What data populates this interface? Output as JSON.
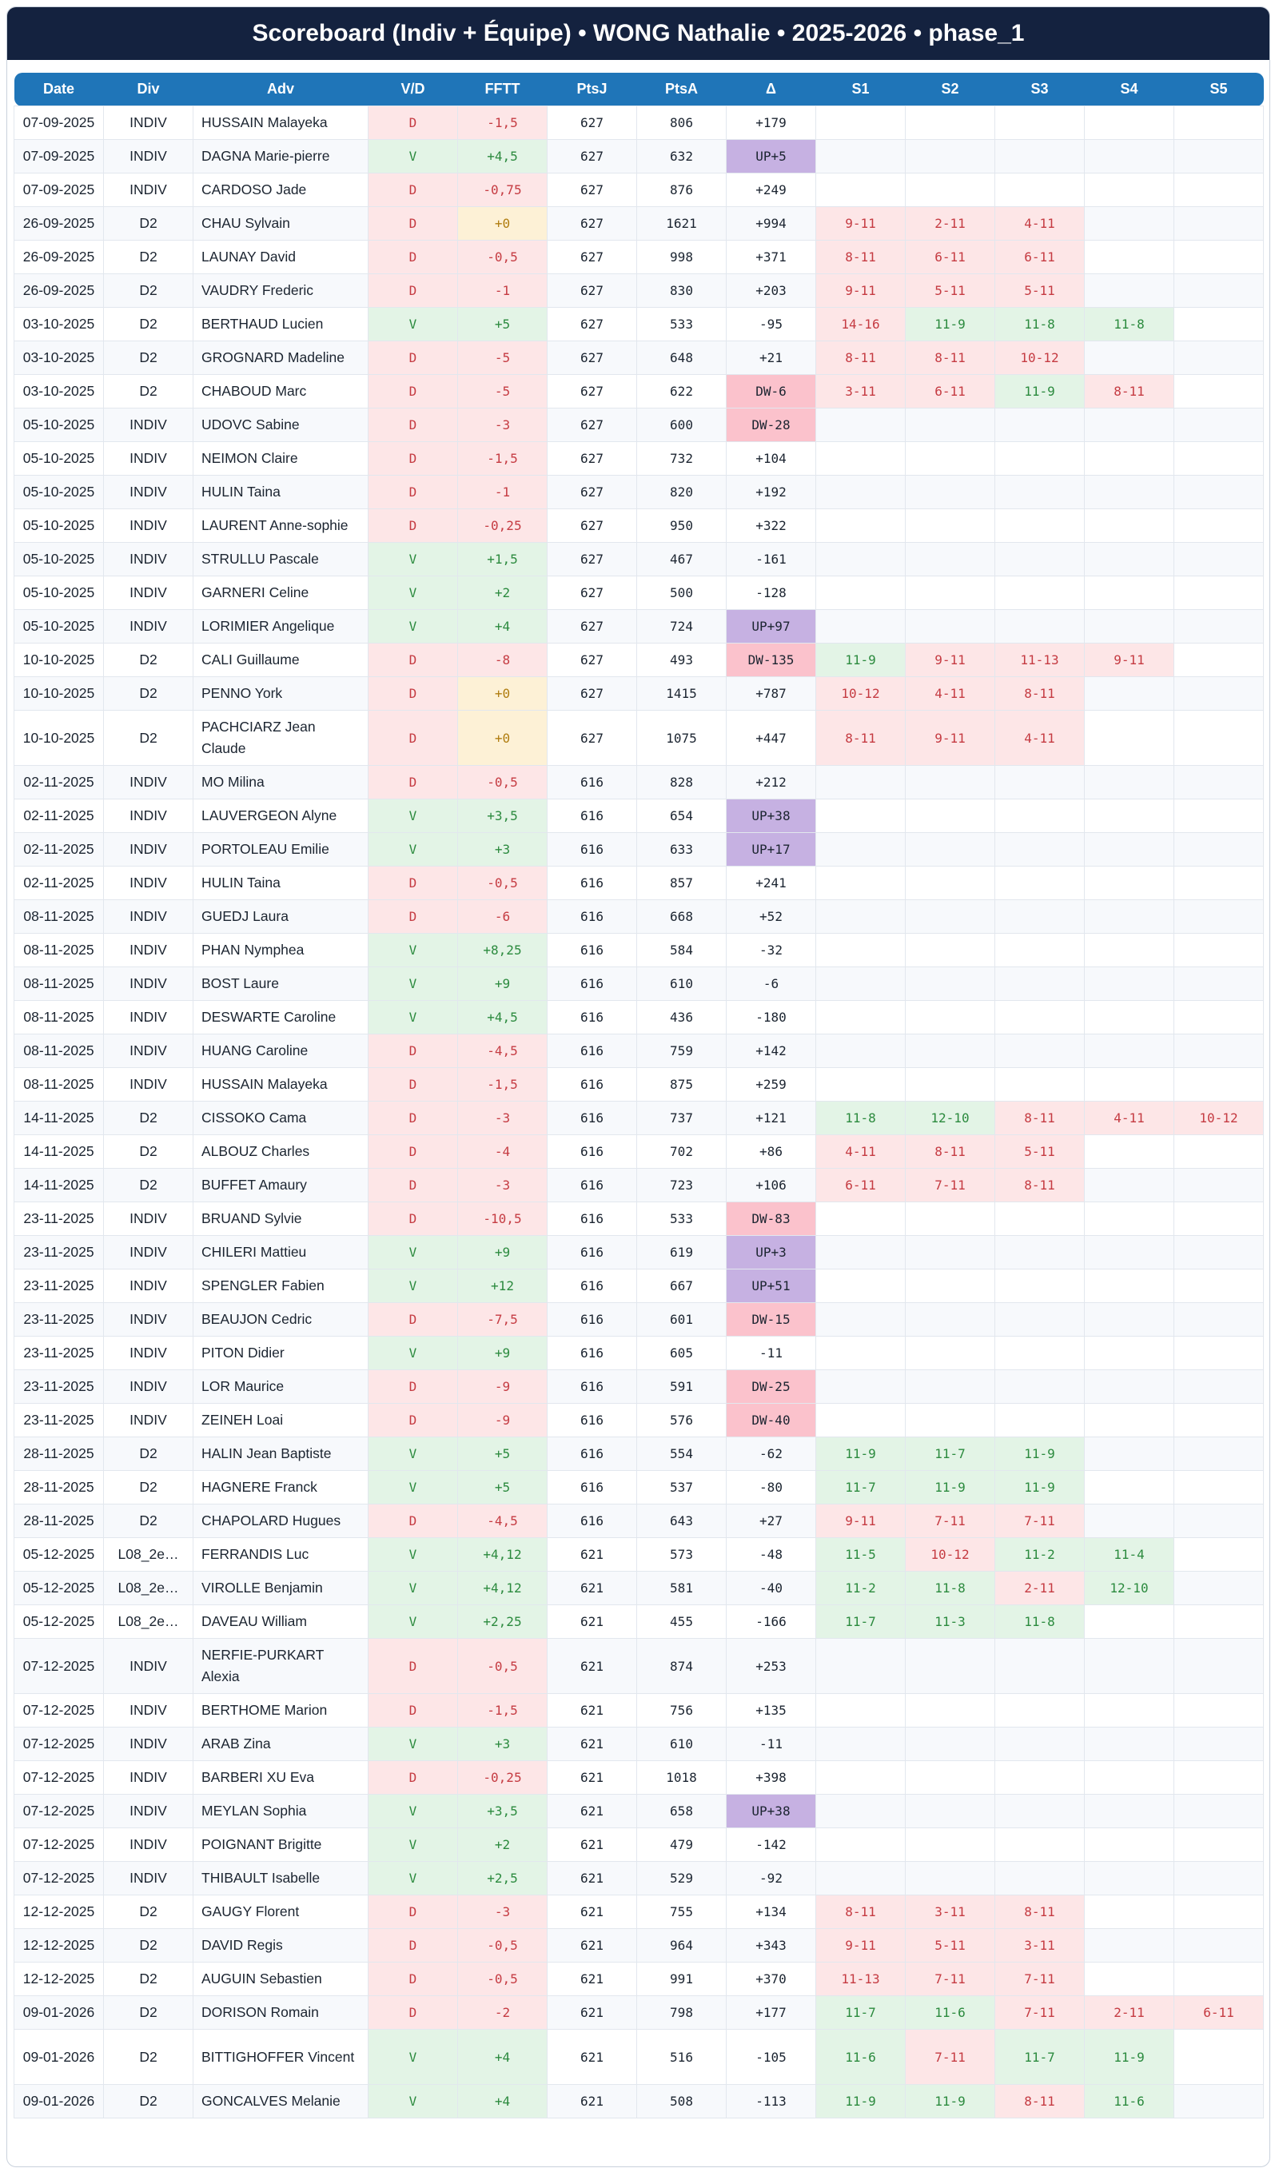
{
  "title": "Scoreboard (Indiv + Équipe) • WONG Nathalie • 2025-2026 • phase_1",
  "columns": [
    "Date",
    "Div",
    "Adv",
    "V/D",
    "FFTT",
    "PtsJ",
    "PtsA",
    "Δ",
    "S1",
    "S2",
    "S3",
    "S4",
    "S5"
  ],
  "rows": [
    {
      "date": "07-09-2025",
      "div": "INDIV",
      "adv": "HUSSAIN Malayeka",
      "vd": "D",
      "fftt": "-1,5",
      "ptsj": "627",
      "ptsa": "806",
      "delta": "+179",
      "sets": [
        "",
        "",
        "",
        "",
        ""
      ]
    },
    {
      "date": "07-09-2025",
      "div": "INDIV",
      "adv": "DAGNA Marie-pierre",
      "vd": "V",
      "fftt": "+4,5",
      "ptsj": "627",
      "ptsa": "632",
      "delta": "UP+5",
      "sets": [
        "",
        "",
        "",
        "",
        ""
      ]
    },
    {
      "date": "07-09-2025",
      "div": "INDIV",
      "adv": "CARDOSO Jade",
      "vd": "D",
      "fftt": "-0,75",
      "ptsj": "627",
      "ptsa": "876",
      "delta": "+249",
      "sets": [
        "",
        "",
        "",
        "",
        ""
      ]
    },
    {
      "date": "26-09-2025",
      "div": "D2",
      "adv": "CHAU Sylvain",
      "vd": "D",
      "fftt": "+0",
      "ptsj": "627",
      "ptsa": "1621",
      "delta": "+994",
      "sets": [
        "9-11",
        "2-11",
        "4-11",
        "",
        ""
      ]
    },
    {
      "date": "26-09-2025",
      "div": "D2",
      "adv": "LAUNAY David",
      "vd": "D",
      "fftt": "-0,5",
      "ptsj": "627",
      "ptsa": "998",
      "delta": "+371",
      "sets": [
        "8-11",
        "6-11",
        "6-11",
        "",
        ""
      ]
    },
    {
      "date": "26-09-2025",
      "div": "D2",
      "adv": "VAUDRY Frederic",
      "vd": "D",
      "fftt": "-1",
      "ptsj": "627",
      "ptsa": "830",
      "delta": "+203",
      "sets": [
        "9-11",
        "5-11",
        "5-11",
        "",
        ""
      ]
    },
    {
      "date": "03-10-2025",
      "div": "D2",
      "adv": "BERTHAUD Lucien",
      "vd": "V",
      "fftt": "+5",
      "ptsj": "627",
      "ptsa": "533",
      "delta": "-95",
      "sets": [
        "14-16",
        "11-9",
        "11-8",
        "11-8",
        ""
      ]
    },
    {
      "date": "03-10-2025",
      "div": "D2",
      "adv": "GROGNARD Madeline",
      "vd": "D",
      "fftt": "-5",
      "ptsj": "627",
      "ptsa": "648",
      "delta": "+21",
      "sets": [
        "8-11",
        "8-11",
        "10-12",
        "",
        ""
      ]
    },
    {
      "date": "03-10-2025",
      "div": "D2",
      "adv": "CHABOUD Marc",
      "vd": "D",
      "fftt": "-5",
      "ptsj": "627",
      "ptsa": "622",
      "delta": "DW-6",
      "sets": [
        "3-11",
        "6-11",
        "11-9",
        "8-11",
        ""
      ]
    },
    {
      "date": "05-10-2025",
      "div": "INDIV",
      "adv": "UDOVC Sabine",
      "vd": "D",
      "fftt": "-3",
      "ptsj": "627",
      "ptsa": "600",
      "delta": "DW-28",
      "sets": [
        "",
        "",
        "",
        "",
        ""
      ]
    },
    {
      "date": "05-10-2025",
      "div": "INDIV",
      "adv": "NEIMON Claire",
      "vd": "D",
      "fftt": "-1,5",
      "ptsj": "627",
      "ptsa": "732",
      "delta": "+104",
      "sets": [
        "",
        "",
        "",
        "",
        ""
      ]
    },
    {
      "date": "05-10-2025",
      "div": "INDIV",
      "adv": "HULIN Taina",
      "vd": "D",
      "fftt": "-1",
      "ptsj": "627",
      "ptsa": "820",
      "delta": "+192",
      "sets": [
        "",
        "",
        "",
        "",
        ""
      ]
    },
    {
      "date": "05-10-2025",
      "div": "INDIV",
      "adv": "LAURENT Anne-sophie",
      "vd": "D",
      "fftt": "-0,25",
      "ptsj": "627",
      "ptsa": "950",
      "delta": "+322",
      "sets": [
        "",
        "",
        "",
        "",
        ""
      ]
    },
    {
      "date": "05-10-2025",
      "div": "INDIV",
      "adv": "STRULLU Pascale",
      "vd": "V",
      "fftt": "+1,5",
      "ptsj": "627",
      "ptsa": "467",
      "delta": "-161",
      "sets": [
        "",
        "",
        "",
        "",
        ""
      ]
    },
    {
      "date": "05-10-2025",
      "div": "INDIV",
      "adv": "GARNERI Celine",
      "vd": "V",
      "fftt": "+2",
      "ptsj": "627",
      "ptsa": "500",
      "delta": "-128",
      "sets": [
        "",
        "",
        "",
        "",
        ""
      ]
    },
    {
      "date": "05-10-2025",
      "div": "INDIV",
      "adv": "LORIMIER Angelique",
      "vd": "V",
      "fftt": "+4",
      "ptsj": "627",
      "ptsa": "724",
      "delta": "UP+97",
      "sets": [
        "",
        "",
        "",
        "",
        ""
      ]
    },
    {
      "date": "10-10-2025",
      "div": "D2",
      "adv": "CALI Guillaume",
      "vd": "D",
      "fftt": "-8",
      "ptsj": "627",
      "ptsa": "493",
      "delta": "DW-135",
      "sets": [
        "11-9",
        "9-11",
        "11-13",
        "9-11",
        ""
      ]
    },
    {
      "date": "10-10-2025",
      "div": "D2",
      "adv": "PENNO York",
      "vd": "D",
      "fftt": "+0",
      "ptsj": "627",
      "ptsa": "1415",
      "delta": "+787",
      "sets": [
        "10-12",
        "4-11",
        "8-11",
        "",
        ""
      ]
    },
    {
      "date": "10-10-2025",
      "div": "D2",
      "adv": "PACHCIARZ Jean Claude",
      "vd": "D",
      "fftt": "+0",
      "ptsj": "627",
      "ptsa": "1075",
      "delta": "+447",
      "sets": [
        "8-11",
        "9-11",
        "4-11",
        "",
        ""
      ],
      "tall": true
    },
    {
      "date": "02-11-2025",
      "div": "INDIV",
      "adv": "MO Milina",
      "vd": "D",
      "fftt": "-0,5",
      "ptsj": "616",
      "ptsa": "828",
      "delta": "+212",
      "sets": [
        "",
        "",
        "",
        "",
        ""
      ]
    },
    {
      "date": "02-11-2025",
      "div": "INDIV",
      "adv": "LAUVERGEON Alyne",
      "vd": "V",
      "fftt": "+3,5",
      "ptsj": "616",
      "ptsa": "654",
      "delta": "UP+38",
      "sets": [
        "",
        "",
        "",
        "",
        ""
      ]
    },
    {
      "date": "02-11-2025",
      "div": "INDIV",
      "adv": "PORTOLEAU Emilie",
      "vd": "V",
      "fftt": "+3",
      "ptsj": "616",
      "ptsa": "633",
      "delta": "UP+17",
      "sets": [
        "",
        "",
        "",
        "",
        ""
      ]
    },
    {
      "date": "02-11-2025",
      "div": "INDIV",
      "adv": "HULIN Taina",
      "vd": "D",
      "fftt": "-0,5",
      "ptsj": "616",
      "ptsa": "857",
      "delta": "+241",
      "sets": [
        "",
        "",
        "",
        "",
        ""
      ]
    },
    {
      "date": "08-11-2025",
      "div": "INDIV",
      "adv": "GUEDJ Laura",
      "vd": "D",
      "fftt": "-6",
      "ptsj": "616",
      "ptsa": "668",
      "delta": "+52",
      "sets": [
        "",
        "",
        "",
        "",
        ""
      ]
    },
    {
      "date": "08-11-2025",
      "div": "INDIV",
      "adv": "PHAN Nymphea",
      "vd": "V",
      "fftt": "+8,25",
      "ptsj": "616",
      "ptsa": "584",
      "delta": "-32",
      "sets": [
        "",
        "",
        "",
        "",
        ""
      ]
    },
    {
      "date": "08-11-2025",
      "div": "INDIV",
      "adv": "BOST Laure",
      "vd": "V",
      "fftt": "+9",
      "ptsj": "616",
      "ptsa": "610",
      "delta": "-6",
      "sets": [
        "",
        "",
        "",
        "",
        ""
      ]
    },
    {
      "date": "08-11-2025",
      "div": "INDIV",
      "adv": "DESWARTE Caroline",
      "vd": "V",
      "fftt": "+4,5",
      "ptsj": "616",
      "ptsa": "436",
      "delta": "-180",
      "sets": [
        "",
        "",
        "",
        "",
        ""
      ]
    },
    {
      "date": "08-11-2025",
      "div": "INDIV",
      "adv": "HUANG Caroline",
      "vd": "D",
      "fftt": "-4,5",
      "ptsj": "616",
      "ptsa": "759",
      "delta": "+142",
      "sets": [
        "",
        "",
        "",
        "",
        ""
      ]
    },
    {
      "date": "08-11-2025",
      "div": "INDIV",
      "adv": "HUSSAIN Malayeka",
      "vd": "D",
      "fftt": "-1,5",
      "ptsj": "616",
      "ptsa": "875",
      "delta": "+259",
      "sets": [
        "",
        "",
        "",
        "",
        ""
      ]
    },
    {
      "date": "14-11-2025",
      "div": "D2",
      "adv": "CISSOKO Cama",
      "vd": "D",
      "fftt": "-3",
      "ptsj": "616",
      "ptsa": "737",
      "delta": "+121",
      "sets": [
        "11-8",
        "12-10",
        "8-11",
        "4-11",
        "10-12"
      ]
    },
    {
      "date": "14-11-2025",
      "div": "D2",
      "adv": "ALBOUZ Charles",
      "vd": "D",
      "fftt": "-4",
      "ptsj": "616",
      "ptsa": "702",
      "delta": "+86",
      "sets": [
        "4-11",
        "8-11",
        "5-11",
        "",
        ""
      ]
    },
    {
      "date": "14-11-2025",
      "div": "D2",
      "adv": "BUFFET Amaury",
      "vd": "D",
      "fftt": "-3",
      "ptsj": "616",
      "ptsa": "723",
      "delta": "+106",
      "sets": [
        "6-11",
        "7-11",
        "8-11",
        "",
        ""
      ]
    },
    {
      "date": "23-11-2025",
      "div": "INDIV",
      "adv": "BRUAND Sylvie",
      "vd": "D",
      "fftt": "-10,5",
      "ptsj": "616",
      "ptsa": "533",
      "delta": "DW-83",
      "sets": [
        "",
        "",
        "",
        "",
        ""
      ]
    },
    {
      "date": "23-11-2025",
      "div": "INDIV",
      "adv": "CHILERI Mattieu",
      "vd": "V",
      "fftt": "+9",
      "ptsj": "616",
      "ptsa": "619",
      "delta": "UP+3",
      "sets": [
        "",
        "",
        "",
        "",
        ""
      ]
    },
    {
      "date": "23-11-2025",
      "div": "INDIV",
      "adv": "SPENGLER Fabien",
      "vd": "V",
      "fftt": "+12",
      "ptsj": "616",
      "ptsa": "667",
      "delta": "UP+51",
      "sets": [
        "",
        "",
        "",
        "",
        ""
      ]
    },
    {
      "date": "23-11-2025",
      "div": "INDIV",
      "adv": "BEAUJON Cedric",
      "vd": "D",
      "fftt": "-7,5",
      "ptsj": "616",
      "ptsa": "601",
      "delta": "DW-15",
      "sets": [
        "",
        "",
        "",
        "",
        ""
      ]
    },
    {
      "date": "23-11-2025",
      "div": "INDIV",
      "adv": "PITON Didier",
      "vd": "V",
      "fftt": "+9",
      "ptsj": "616",
      "ptsa": "605",
      "delta": "-11",
      "sets": [
        "",
        "",
        "",
        "",
        ""
      ]
    },
    {
      "date": "23-11-2025",
      "div": "INDIV",
      "adv": "LOR Maurice",
      "vd": "D",
      "fftt": "-9",
      "ptsj": "616",
      "ptsa": "591",
      "delta": "DW-25",
      "sets": [
        "",
        "",
        "",
        "",
        ""
      ]
    },
    {
      "date": "23-11-2025",
      "div": "INDIV",
      "adv": "ZEINEH Loai",
      "vd": "D",
      "fftt": "-9",
      "ptsj": "616",
      "ptsa": "576",
      "delta": "DW-40",
      "sets": [
        "",
        "",
        "",
        "",
        ""
      ]
    },
    {
      "date": "28-11-2025",
      "div": "D2",
      "adv": "HALIN Jean Baptiste",
      "vd": "V",
      "fftt": "+5",
      "ptsj": "616",
      "ptsa": "554",
      "delta": "-62",
      "sets": [
        "11-9",
        "11-7",
        "11-9",
        "",
        ""
      ]
    },
    {
      "date": "28-11-2025",
      "div": "D2",
      "adv": "HAGNERE Franck",
      "vd": "V",
      "fftt": "+5",
      "ptsj": "616",
      "ptsa": "537",
      "delta": "-80",
      "sets": [
        "11-7",
        "11-9",
        "11-9",
        "",
        ""
      ]
    },
    {
      "date": "28-11-2025",
      "div": "D2",
      "adv": "CHAPOLARD Hugues",
      "vd": "D",
      "fftt": "-4,5",
      "ptsj": "616",
      "ptsa": "643",
      "delta": "+27",
      "sets": [
        "9-11",
        "7-11",
        "7-11",
        "",
        ""
      ]
    },
    {
      "date": "05-12-2025",
      "div": "L08_2e…",
      "adv": "FERRANDIS Luc",
      "vd": "V",
      "fftt": "+4,12",
      "ptsj": "621",
      "ptsa": "573",
      "delta": "-48",
      "sets": [
        "11-5",
        "10-12",
        "11-2",
        "11-4",
        ""
      ]
    },
    {
      "date": "05-12-2025",
      "div": "L08_2e…",
      "adv": "VIROLLE Benjamin",
      "vd": "V",
      "fftt": "+4,12",
      "ptsj": "621",
      "ptsa": "581",
      "delta": "-40",
      "sets": [
        "11-2",
        "11-8",
        "2-11",
        "12-10",
        ""
      ]
    },
    {
      "date": "05-12-2025",
      "div": "L08_2e…",
      "adv": "DAVEAU William",
      "vd": "V",
      "fftt": "+2,25",
      "ptsj": "621",
      "ptsa": "455",
      "delta": "-166",
      "sets": [
        "11-7",
        "11-3",
        "11-8",
        "",
        ""
      ]
    },
    {
      "date": "07-12-2025",
      "div": "INDIV",
      "adv": "NERFIE-PURKART Alexia",
      "vd": "D",
      "fftt": "-0,5",
      "ptsj": "621",
      "ptsa": "874",
      "delta": "+253",
      "sets": [
        "",
        "",
        "",
        "",
        ""
      ],
      "tall": true
    },
    {
      "date": "07-12-2025",
      "div": "INDIV",
      "adv": "BERTHOME Marion",
      "vd": "D",
      "fftt": "-1,5",
      "ptsj": "621",
      "ptsa": "756",
      "delta": "+135",
      "sets": [
        "",
        "",
        "",
        "",
        ""
      ]
    },
    {
      "date": "07-12-2025",
      "div": "INDIV",
      "adv": "ARAB Zina",
      "vd": "V",
      "fftt": "+3",
      "ptsj": "621",
      "ptsa": "610",
      "delta": "-11",
      "sets": [
        "",
        "",
        "",
        "",
        ""
      ]
    },
    {
      "date": "07-12-2025",
      "div": "INDIV",
      "adv": "BARBERI XU Eva",
      "vd": "D",
      "fftt": "-0,25",
      "ptsj": "621",
      "ptsa": "1018",
      "delta": "+398",
      "sets": [
        "",
        "",
        "",
        "",
        ""
      ]
    },
    {
      "date": "07-12-2025",
      "div": "INDIV",
      "adv": "MEYLAN Sophia",
      "vd": "V",
      "fftt": "+3,5",
      "ptsj": "621",
      "ptsa": "658",
      "delta": "UP+38",
      "sets": [
        "",
        "",
        "",
        "",
        ""
      ]
    },
    {
      "date": "07-12-2025",
      "div": "INDIV",
      "adv": "POIGNANT Brigitte",
      "vd": "V",
      "fftt": "+2",
      "ptsj": "621",
      "ptsa": "479",
      "delta": "-142",
      "sets": [
        "",
        "",
        "",
        "",
        ""
      ]
    },
    {
      "date": "07-12-2025",
      "div": "INDIV",
      "adv": "THIBAULT Isabelle",
      "vd": "V",
      "fftt": "+2,5",
      "ptsj": "621",
      "ptsa": "529",
      "delta": "-92",
      "sets": [
        "",
        "",
        "",
        "",
        ""
      ]
    },
    {
      "date": "12-12-2025",
      "div": "D2",
      "adv": "GAUGY Florent",
      "vd": "D",
      "fftt": "-3",
      "ptsj": "621",
      "ptsa": "755",
      "delta": "+134",
      "sets": [
        "8-11",
        "3-11",
        "8-11",
        "",
        ""
      ]
    },
    {
      "date": "12-12-2025",
      "div": "D2",
      "adv": "DAVID Regis",
      "vd": "D",
      "fftt": "-0,5",
      "ptsj": "621",
      "ptsa": "964",
      "delta": "+343",
      "sets": [
        "9-11",
        "5-11",
        "3-11",
        "",
        ""
      ]
    },
    {
      "date": "12-12-2025",
      "div": "D2",
      "adv": "AUGUIN Sebastien",
      "vd": "D",
      "fftt": "-0,5",
      "ptsj": "621",
      "ptsa": "991",
      "delta": "+370",
      "sets": [
        "11-13",
        "7-11",
        "7-11",
        "",
        ""
      ]
    },
    {
      "date": "09-01-2026",
      "div": "D2",
      "adv": "DORISON Romain",
      "vd": "D",
      "fftt": "-2",
      "ptsj": "621",
      "ptsa": "798",
      "delta": "+177",
      "sets": [
        "11-7",
        "11-6",
        "7-11",
        "2-11",
        "6-11"
      ]
    },
    {
      "date": "09-01-2026",
      "div": "D2",
      "adv": "BITTIGHOFFER Vincent",
      "vd": "V",
      "fftt": "+4",
      "ptsj": "621",
      "ptsa": "516",
      "delta": "-105",
      "sets": [
        "11-6",
        "7-11",
        "11-7",
        "11-9",
        ""
      ],
      "tall": true
    },
    {
      "date": "09-01-2026",
      "div": "D2",
      "adv": "GONCALVES Melanie",
      "vd": "V",
      "fftt": "+4",
      "ptsj": "621",
      "ptsa": "508",
      "delta": "-113",
      "sets": [
        "11-9",
        "11-9",
        "8-11",
        "11-6",
        ""
      ]
    }
  ]
}
